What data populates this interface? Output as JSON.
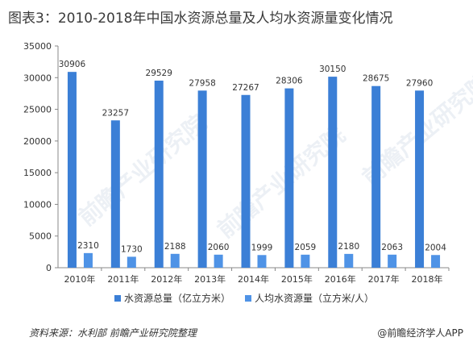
{
  "title": "图表3：2010-2018年中国水资源总量及人均水资源量变化情况",
  "source": "资料来源：水利部  前瞻产业研究院整理",
  "brand": "@前瞻经济学人APP",
  "watermark": "前瞻产业研究院",
  "colors": {
    "series1": "#3b7fd6",
    "series2": "#4f93e6",
    "axis": "#888888",
    "text": "#333333"
  },
  "chart_data": {
    "type": "bar",
    "categories": [
      "2010年",
      "2011年",
      "2012年",
      "2013年",
      "2014年",
      "2015年",
      "2016年",
      "2017年",
      "2018年"
    ],
    "series": [
      {
        "name": "水资源总量（亿立方米）",
        "values": [
          30906,
          23257,
          29529,
          27958,
          27267,
          28306,
          30150,
          28675,
          27960
        ]
      },
      {
        "name": "人均水资源量（立方米/人）",
        "values": [
          2310,
          1730,
          2188,
          2060,
          1999,
          2059,
          2180,
          2063,
          2004
        ]
      }
    ],
    "yticks": [
      "0",
      "5000",
      "10000",
      "15000",
      "20000",
      "25000",
      "30000",
      "35000"
    ],
    "ylim": [
      0,
      35000
    ],
    "legend_position": "bottom",
    "grid": false
  }
}
